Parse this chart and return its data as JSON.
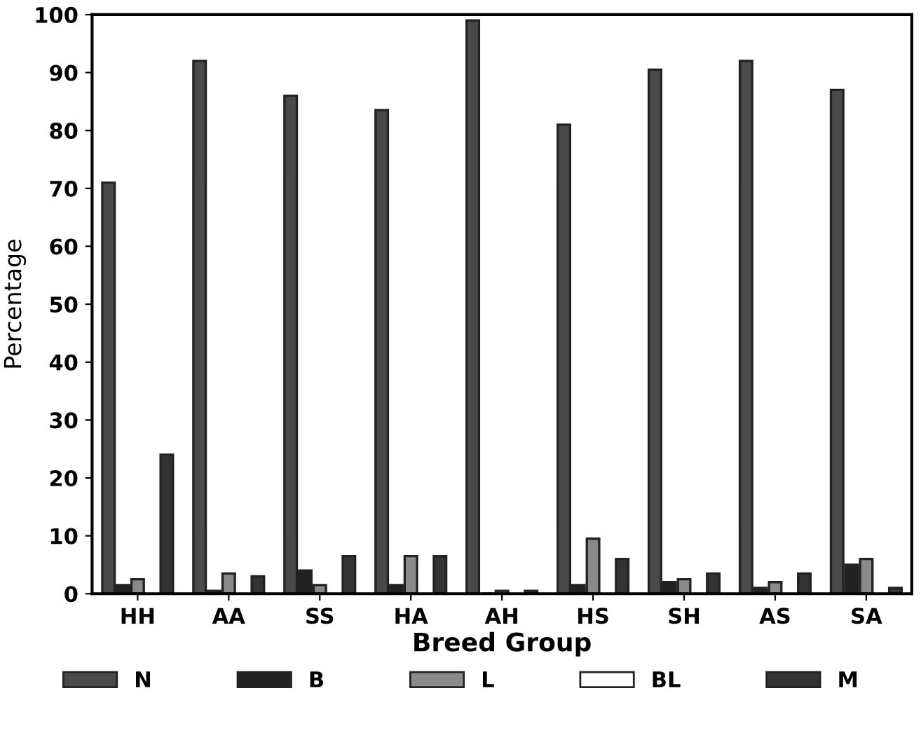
{
  "chart_data": {
    "type": "bar",
    "xlabel": "Breed Group",
    "ylabel": "Percentage",
    "categories": [
      "HH",
      "AA",
      "SS",
      "HA",
      "AH",
      "HS",
      "SH",
      "AS",
      "SA"
    ],
    "series": [
      {
        "name": "N",
        "color": "#4a4a4a",
        "values": [
          71,
          92,
          86,
          83.5,
          99,
          81,
          90.5,
          92,
          87
        ]
      },
      {
        "name": "B",
        "color": "#222222",
        "values": [
          1.5,
          0.5,
          4,
          1.5,
          0,
          1.5,
          2,
          1,
          5
        ]
      },
      {
        "name": "L",
        "color": "#8a8a8a",
        "values": [
          2.5,
          3.5,
          1.5,
          6.5,
          0.5,
          9.5,
          2.5,
          2,
          6
        ]
      },
      {
        "name": "BL",
        "color": "#ffffff",
        "values": [
          null,
          null,
          null,
          null,
          null,
          null,
          null,
          null,
          null
        ]
      },
      {
        "name": "M",
        "color": "#333333",
        "values": [
          24,
          3,
          6.5,
          6.5,
          0.5,
          6,
          3.5,
          3.5,
          1
        ]
      }
    ],
    "ylim": [
      0,
      100
    ],
    "yticks": [
      0,
      10,
      20,
      30,
      40,
      50,
      60,
      70,
      80,
      90,
      100
    ],
    "grid": false,
    "legend": "bottom"
  }
}
